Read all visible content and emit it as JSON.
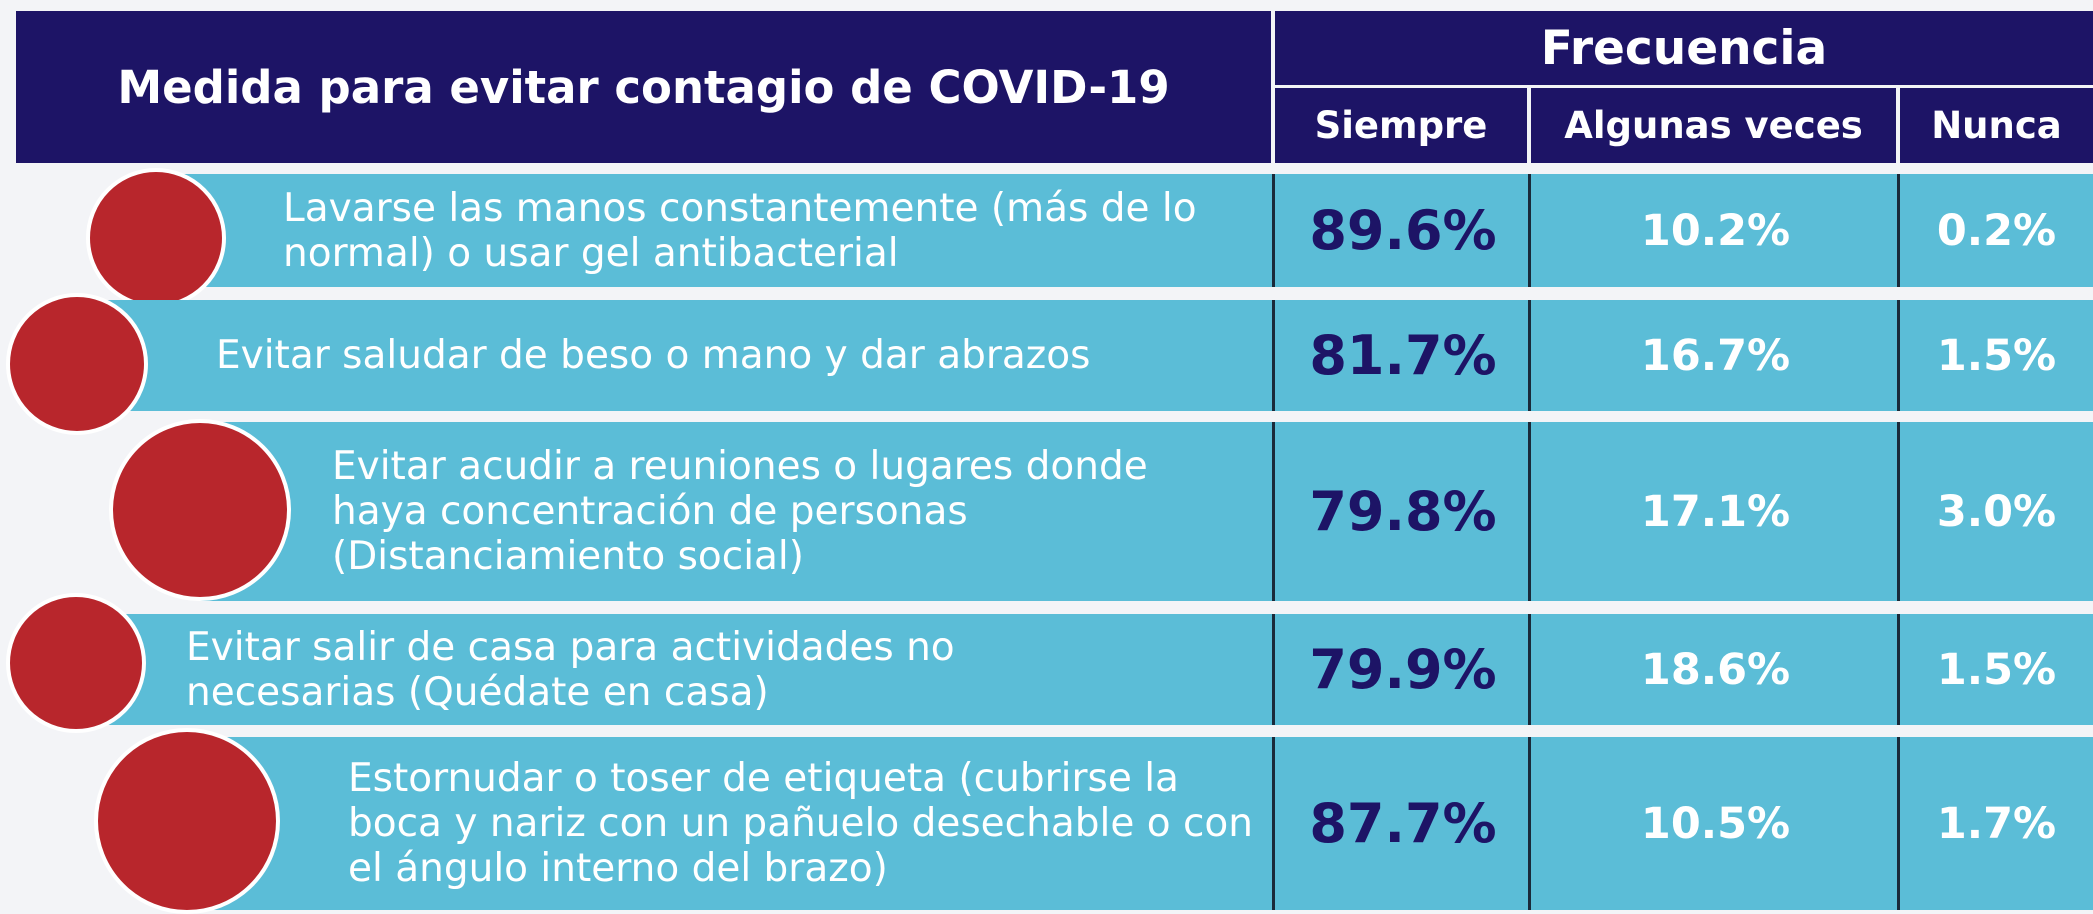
{
  "header": {
    "title": "Medida para evitar contagio de COVID-19",
    "frequency": "Frecuencia",
    "columns": [
      "Siempre",
      "Algunas veces",
      "Nunca"
    ]
  },
  "table": {
    "rows": [
      {
        "measure": "Lavarse las manos constantemente (más de lo normal) o usar gel antibacterial",
        "values": [
          "89.6%",
          "10.2%",
          "0.2%"
        ]
      },
      {
        "measure": "Evitar saludar de beso o mano y dar abrazos",
        "values": [
          "81.7%",
          "16.7%",
          "1.5%"
        ]
      },
      {
        "measure": "Evitar acudir a reuniones o lugares donde haya concentración de personas (Distanciamiento social)",
        "values": [
          "79.8%",
          "17.1%",
          "3.0%"
        ]
      },
      {
        "measure": "Evitar salir de casa para actividades no necesarias (Quédate en casa)",
        "values": [
          "79.9%",
          "18.6%",
          "1.5%"
        ]
      },
      {
        "measure": "Estornudar o toser de etiqueta (cubrirse la boca y nariz con un pañuelo desechable o con el ángulo interno del brazo)",
        "values": [
          "87.7%",
          "10.5%",
          "1.7%"
        ]
      }
    ]
  }
}
